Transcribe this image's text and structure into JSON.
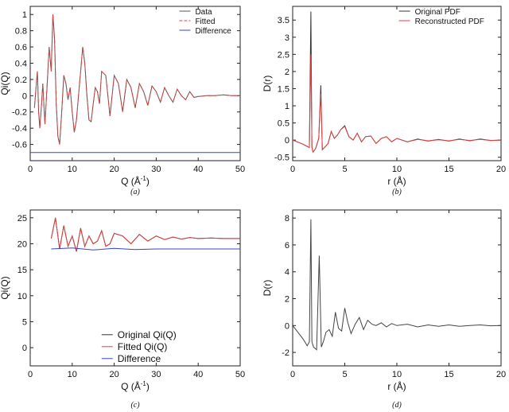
{
  "chart_data": [
    {
      "type": "line",
      "caption": "(a)",
      "xlabel": "Q (Å",
      "xlabel_sup": "-1",
      "xlabel_close": ")",
      "ylabel": "Qi(Q)",
      "xlim": [
        0,
        50
      ],
      "ylim": [
        -0.8,
        1.1
      ],
      "xticks": [
        0,
        10,
        20,
        30,
        40,
        50
      ],
      "yticks": [
        1,
        0.8,
        0.6,
        0.4,
        0.2,
        0,
        -0.2,
        -0.4,
        -0.6
      ],
      "legend_position": "top-right",
      "series": [
        {
          "name": "Data",
          "color": "#555555",
          "style": "solid",
          "x": [
            1.0,
            1.3,
            1.7,
            2.0,
            2.3,
            2.7,
            3.0,
            3.5,
            4.0,
            4.5,
            5.0,
            5.4,
            5.8,
            6.2,
            6.6,
            7.0,
            7.5,
            8.0,
            8.5,
            9.0,
            9.5,
            10.0,
            10.5,
            11.0,
            11.5,
            12.0,
            12.5,
            13.0,
            13.5,
            14.0,
            14.5,
            15.0,
            15.5,
            16.0,
            16.5,
            17.0,
            18.0,
            19.0,
            20.0,
            21.0,
            22.0,
            23.0,
            24.0,
            25.0,
            26.0,
            27.0,
            28.0,
            29.0,
            30.0,
            31.0,
            32.0,
            33.0,
            34.0,
            35.0,
            36.0,
            37.0,
            38.0,
            39.0,
            40.0,
            42.0,
            44.0,
            46.0,
            48.0,
            50.0
          ],
          "y": [
            -0.15,
            0.05,
            0.3,
            -0.2,
            -0.4,
            -0.1,
            0.15,
            -0.35,
            0.1,
            0.6,
            0.3,
            1.0,
            0.7,
            -0.1,
            -0.5,
            -0.6,
            -0.2,
            0.25,
            0.15,
            -0.05,
            0.1,
            -0.2,
            -0.45,
            -0.3,
            0.0,
            0.3,
            0.6,
            0.4,
            0.0,
            -0.3,
            -0.32,
            -0.1,
            0.1,
            0.05,
            -0.1,
            0.3,
            0.25,
            -0.25,
            0.25,
            0.15,
            -0.2,
            0.2,
            0.1,
            -0.15,
            0.15,
            0.05,
            -0.12,
            0.12,
            0.05,
            -0.08,
            0.1,
            0.0,
            -0.08,
            0.08,
            0.0,
            -0.05,
            0.05,
            -0.02,
            -0.01,
            0.0,
            0.0,
            0.01,
            0.0,
            0.0
          ]
        },
        {
          "name": "Fitted",
          "color": "#e04040",
          "style": "dashed",
          "x": [
            1.0,
            1.3,
            1.7,
            2.0,
            2.3,
            2.7,
            3.0,
            3.5,
            4.0,
            4.5,
            5.0,
            5.4,
            5.8,
            6.2,
            6.6,
            7.0,
            7.5,
            8.0,
            8.5,
            9.0,
            9.5,
            10.0,
            10.5,
            11.0,
            11.5,
            12.0,
            12.5,
            13.0,
            13.5,
            14.0,
            14.5,
            15.0,
            15.5,
            16.0,
            16.5,
            17.0,
            18.0,
            19.0,
            20.0,
            21.0,
            22.0,
            23.0,
            24.0,
            25.0,
            26.0,
            27.0,
            28.0,
            29.0,
            30.0,
            31.0,
            32.0,
            33.0,
            34.0,
            35.0,
            36.0,
            37.0,
            38.0,
            39.0,
            40.0,
            42.0,
            44.0,
            46.0,
            48.0,
            50.0
          ],
          "y": [
            -0.15,
            0.05,
            0.3,
            -0.2,
            -0.4,
            -0.1,
            0.15,
            -0.35,
            0.1,
            0.6,
            0.3,
            1.0,
            0.7,
            -0.1,
            -0.5,
            -0.6,
            -0.2,
            0.25,
            0.15,
            -0.05,
            0.1,
            -0.2,
            -0.45,
            -0.3,
            0.0,
            0.3,
            0.6,
            0.4,
            0.0,
            -0.3,
            -0.32,
            -0.1,
            0.1,
            0.05,
            -0.1,
            0.3,
            0.25,
            -0.25,
            0.25,
            0.15,
            -0.2,
            0.2,
            0.1,
            -0.15,
            0.15,
            0.05,
            -0.12,
            0.12,
            0.05,
            -0.08,
            0.1,
            0.0,
            -0.08,
            0.08,
            0.0,
            -0.05,
            0.05,
            -0.02,
            -0.01,
            0.0,
            0.0,
            0.01,
            0.0,
            0.0
          ]
        },
        {
          "name": "Difference",
          "color": "#3344cc",
          "style": "solid",
          "x": [
            0,
            50
          ],
          "y": [
            -0.7,
            -0.7
          ]
        }
      ]
    },
    {
      "type": "line",
      "caption": "(b)",
      "xlabel": "r (Å)",
      "ylabel": "D(r)",
      "xlim": [
        0,
        20
      ],
      "ylim": [
        -0.6,
        3.9
      ],
      "xticks": [
        0,
        5,
        10,
        15,
        20
      ],
      "yticks": [
        3.5,
        3,
        2.5,
        2,
        1.5,
        1,
        0.5,
        0,
        -0.5
      ],
      "legend_position": "top-right",
      "series": [
        {
          "name": "Original PDF",
          "color": "#333333",
          "style": "solid",
          "x": [
            0.0,
            1.0,
            1.6,
            1.75,
            1.85,
            1.95,
            2.2,
            2.5,
            2.7,
            2.85,
            3.1,
            3.4,
            3.7,
            4.0,
            4.3,
            4.6,
            5.0,
            5.4,
            5.8,
            6.2,
            6.6,
            7.0,
            7.5,
            8.0,
            8.5,
            9.0,
            9.5,
            10.0,
            11.0,
            12.0,
            13.0,
            14.0,
            15.0,
            16.0,
            17.0,
            18.0,
            19.0,
            20.0
          ],
          "y": [
            0.0,
            -0.12,
            -0.22,
            3.75,
            -0.2,
            -0.35,
            -0.25,
            0.05,
            1.6,
            -0.28,
            -0.2,
            -0.1,
            0.25,
            0.05,
            0.15,
            0.3,
            0.42,
            0.1,
            0.0,
            0.2,
            -0.05,
            0.1,
            0.12,
            -0.1,
            0.05,
            0.1,
            -0.05,
            0.05,
            -0.05,
            0.03,
            -0.03,
            0.02,
            -0.03,
            0.03,
            -0.02,
            0.03,
            -0.01,
            0.0
          ]
        },
        {
          "name": "Reconstructed PDF",
          "color": "#e04040",
          "style": "solid",
          "x": [
            0.0,
            1.0,
            1.6,
            1.75,
            1.85,
            1.95,
            2.2,
            2.5,
            2.7,
            2.85,
            3.1,
            3.4,
            3.7,
            4.0,
            4.3,
            4.6,
            5.0,
            5.4,
            5.8,
            6.2,
            6.6,
            7.0,
            7.5,
            8.0,
            8.5,
            9.0,
            9.5,
            10.0,
            11.0,
            12.0,
            13.0,
            14.0,
            15.0,
            16.0,
            17.0,
            18.0,
            19.0,
            20.0
          ],
          "y": [
            0.0,
            -0.12,
            -0.22,
            2.5,
            -0.2,
            -0.35,
            -0.25,
            0.05,
            1.35,
            -0.28,
            -0.2,
            -0.1,
            0.25,
            0.05,
            0.15,
            0.3,
            0.4,
            0.1,
            0.0,
            0.2,
            -0.05,
            0.1,
            0.12,
            -0.1,
            0.05,
            0.1,
            -0.05,
            0.05,
            -0.05,
            0.02,
            -0.02,
            0.01,
            -0.02,
            0.02,
            -0.01,
            0.02,
            -0.01,
            0.0
          ]
        }
      ]
    },
    {
      "type": "line",
      "caption": "(c)",
      "xlabel": "Q (Å",
      "xlabel_sup": "-1",
      "xlabel_close": ")",
      "ylabel": "Qi(Q)",
      "xlim": [
        0,
        50
      ],
      "ylim": [
        -3.5,
        26.5
      ],
      "xticks": [
        0,
        10,
        20,
        30,
        40,
        50
      ],
      "yticks": [
        25,
        20,
        15,
        10,
        5,
        0
      ],
      "legend_position": "bottom-right",
      "series": [
        {
          "name": "Original Qi(Q)",
          "color": "#333333",
          "style": "solid",
          "x": [
            5,
            6,
            7,
            8,
            9,
            10,
            11,
            12,
            13,
            14,
            15,
            16,
            17,
            18,
            19,
            20,
            22,
            24,
            26,
            28,
            30,
            32,
            34,
            36,
            38,
            40,
            43,
            46,
            50
          ],
          "y": [
            21,
            25,
            19,
            23.5,
            19.5,
            21.5,
            18.5,
            23,
            19.5,
            21.5,
            20,
            20.5,
            22.5,
            19.5,
            20,
            22,
            21.5,
            20,
            21.8,
            20.5,
            21.5,
            20.8,
            21.3,
            20.9,
            21.2,
            21,
            21.1,
            21,
            21
          ]
        },
        {
          "name": "Fitted Qi(Q)",
          "color": "#e04040",
          "style": "solid",
          "x": [
            5,
            6,
            7,
            8,
            9,
            10,
            11,
            12,
            13,
            14,
            15,
            16,
            17,
            18,
            19,
            20,
            22,
            24,
            26,
            28,
            30,
            32,
            34,
            36,
            38,
            40,
            43,
            46,
            50
          ],
          "y": [
            21,
            25,
            19,
            23.5,
            19.5,
            21.5,
            18.5,
            23,
            19.5,
            21.5,
            20,
            20.5,
            22.5,
            19.5,
            20,
            22,
            21.5,
            20,
            21.8,
            20.5,
            21.5,
            20.8,
            21.3,
            20.9,
            21.2,
            21,
            21.1,
            21,
            21
          ]
        },
        {
          "name": "Difference",
          "color": "#3344cc",
          "style": "solid",
          "x": [
            5,
            10,
            15,
            20,
            25,
            30,
            35,
            40,
            45,
            50
          ],
          "y": [
            19,
            19.2,
            18.8,
            19.1,
            18.9,
            19,
            19,
            19,
            19,
            19
          ]
        }
      ]
    },
    {
      "type": "line",
      "caption": "(d)",
      "xlabel": "r (Å)",
      "ylabel": "D(r)",
      "xlim": [
        0,
        20
      ],
      "ylim": [
        -3,
        8.6
      ],
      "xticks": [
        0,
        5,
        10,
        15,
        20
      ],
      "yticks": [
        8,
        6,
        4,
        2,
        0,
        -2
      ],
      "series": [
        {
          "color": "#444444",
          "style": "solid",
          "x": [
            0.0,
            0.5,
            1.0,
            1.4,
            1.6,
            1.75,
            1.85,
            2.0,
            2.3,
            2.55,
            2.75,
            2.95,
            3.2,
            3.5,
            3.8,
            4.1,
            4.4,
            4.7,
            5.0,
            5.3,
            5.6,
            6.0,
            6.4,
            6.8,
            7.2,
            7.6,
            8.0,
            8.5,
            9.0,
            9.5,
            10.0,
            11.0,
            12.0,
            13.0,
            14.0,
            15.0,
            16.0,
            17.0,
            18.0,
            19.0,
            20.0
          ],
          "y": [
            0.0,
            -0.5,
            -1.0,
            -1.5,
            -1.2,
            7.9,
            -1.2,
            -1.6,
            -1.8,
            5.2,
            -1.6,
            -1.2,
            -0.5,
            -0.3,
            -0.8,
            1.0,
            -0.2,
            -0.4,
            1.3,
            0.2,
            -0.6,
            0.1,
            0.6,
            -0.3,
            0.4,
            0.1,
            0.0,
            0.2,
            -0.1,
            0.15,
            0.0,
            0.1,
            -0.1,
            0.05,
            -0.05,
            0.05,
            -0.05,
            0.0,
            0.05,
            -0.02,
            0.0
          ]
        }
      ]
    }
  ]
}
